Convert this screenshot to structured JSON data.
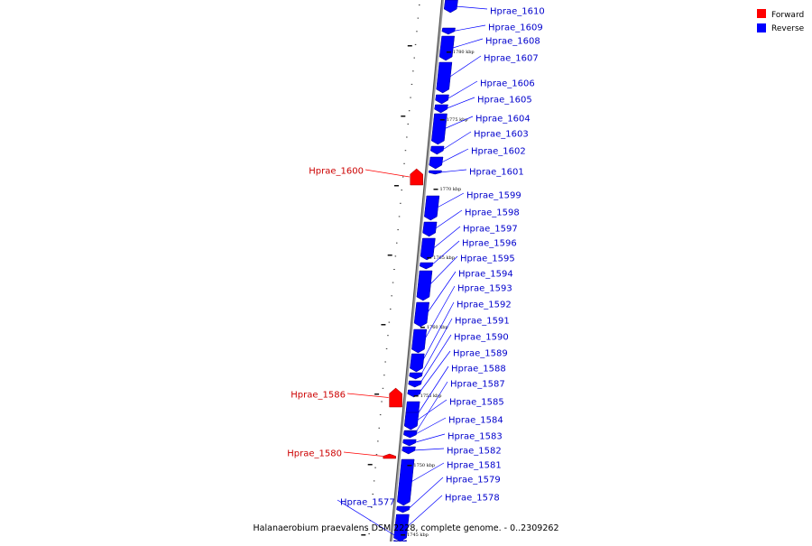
{
  "title": "Halanaerobium praevalens DSM 2228, complete genome. - 0..2309262",
  "legend": [
    {
      "label": "Forward",
      "color": "#ff0000"
    },
    {
      "label": "Reverse",
      "color": "#0000ff"
    }
  ],
  "colors": {
    "forward": "#ff0000",
    "reverse": "#0000ff",
    "backbone": "#999999"
  },
  "scale_labels": [
    "1780 kbp",
    "1775 kbp",
    "1770 kbp",
    "1765 kbp",
    "1760 kbp",
    "1755 kbp",
    "1750 kbp",
    "1745 kbp"
  ],
  "genes": [
    {
      "name": "Hprae_1610",
      "strand": "reverse"
    },
    {
      "name": "Hprae_1609",
      "strand": "reverse"
    },
    {
      "name": "Hprae_1608",
      "strand": "reverse"
    },
    {
      "name": "Hprae_1607",
      "strand": "reverse"
    },
    {
      "name": "Hprae_1606",
      "strand": "reverse"
    },
    {
      "name": "Hprae_1605",
      "strand": "reverse"
    },
    {
      "name": "Hprae_1604",
      "strand": "reverse"
    },
    {
      "name": "Hprae_1603",
      "strand": "reverse"
    },
    {
      "name": "Hprae_1602",
      "strand": "reverse"
    },
    {
      "name": "Hprae_1601",
      "strand": "reverse"
    },
    {
      "name": "Hprae_1600",
      "strand": "forward"
    },
    {
      "name": "Hprae_1599",
      "strand": "reverse"
    },
    {
      "name": "Hprae_1598",
      "strand": "reverse"
    },
    {
      "name": "Hprae_1597",
      "strand": "reverse"
    },
    {
      "name": "Hprae_1596",
      "strand": "reverse"
    },
    {
      "name": "Hprae_1595",
      "strand": "reverse"
    },
    {
      "name": "Hprae_1594",
      "strand": "reverse"
    },
    {
      "name": "Hprae_1593",
      "strand": "reverse"
    },
    {
      "name": "Hprae_1592",
      "strand": "reverse"
    },
    {
      "name": "Hprae_1591",
      "strand": "reverse"
    },
    {
      "name": "Hprae_1590",
      "strand": "reverse"
    },
    {
      "name": "Hprae_1589",
      "strand": "reverse"
    },
    {
      "name": "Hprae_1588",
      "strand": "reverse"
    },
    {
      "name": "Hprae_1587",
      "strand": "reverse"
    },
    {
      "name": "Hprae_1586",
      "strand": "forward"
    },
    {
      "name": "Hprae_1585",
      "strand": "reverse"
    },
    {
      "name": "Hprae_1584",
      "strand": "reverse"
    },
    {
      "name": "Hprae_1583",
      "strand": "reverse"
    },
    {
      "name": "Hprae_1582",
      "strand": "reverse"
    },
    {
      "name": "Hprae_1581",
      "strand": "reverse"
    },
    {
      "name": "Hprae_1580",
      "strand": "forward"
    },
    {
      "name": "Hprae_1579",
      "strand": "reverse"
    },
    {
      "name": "Hprae_1578",
      "strand": "reverse"
    },
    {
      "name": "Hprae_1577",
      "strand": "reverse"
    }
  ]
}
